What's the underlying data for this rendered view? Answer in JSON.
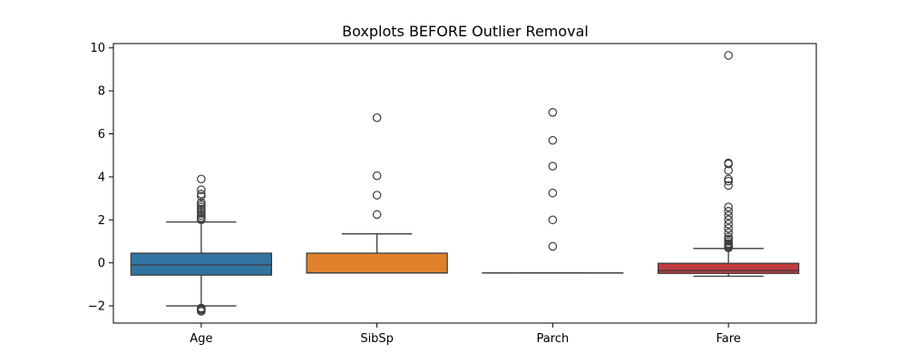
{
  "chart_data": {
    "type": "box",
    "title": "Boxplots BEFORE Outlier Removal",
    "xlabel": "",
    "ylabel": "",
    "ylim": [
      -2.8,
      10.2
    ],
    "yticks": [
      -2,
      0,
      2,
      4,
      6,
      8,
      10
    ],
    "ytick_labels": [
      "−2",
      "0",
      "2",
      "4",
      "6",
      "8",
      "10"
    ],
    "grid": false,
    "categories": [
      "Age",
      "SibSp",
      "Parch",
      "Fare"
    ],
    "boxes": [
      {
        "name": "Age",
        "color": "#3274a1",
        "whisker_low": -2.0,
        "q1": -0.57,
        "median": -0.1,
        "q3": 0.45,
        "whisker_high": 1.9,
        "outliers": [
          -2.1,
          -2.15,
          -2.2,
          -2.25,
          2.0,
          2.05,
          2.1,
          2.2,
          2.3,
          2.4,
          2.5,
          2.6,
          2.7,
          2.8,
          3.1,
          3.2,
          3.4,
          3.9
        ]
      },
      {
        "name": "SibSp",
        "color": "#e1812c",
        "whisker_low": -0.47,
        "q1": -0.47,
        "median": -0.47,
        "q3": 0.45,
        "whisker_high": 1.35,
        "outliers": [
          2.25,
          3.15,
          4.05,
          6.75
        ]
      },
      {
        "name": "Parch",
        "color": "#3a923a",
        "whisker_low": -0.47,
        "q1": -0.47,
        "median": -0.47,
        "q3": -0.47,
        "whisker_high": -0.47,
        "outliers": [
          0.77,
          2.0,
          3.25,
          4.5,
          5.7,
          7.0
        ]
      },
      {
        "name": "Fare",
        "color": "#c03d3e",
        "whisker_low": -0.62,
        "q1": -0.49,
        "median": -0.36,
        "q3": -0.02,
        "whisker_high": 0.67,
        "outliers": [
          0.7,
          0.75,
          0.8,
          0.85,
          0.9,
          1.0,
          1.1,
          1.2,
          1.4,
          1.6,
          1.8,
          2.0,
          2.2,
          2.4,
          2.6,
          3.6,
          3.8,
          3.9,
          4.3,
          4.6,
          4.65,
          9.65
        ]
      }
    ]
  }
}
